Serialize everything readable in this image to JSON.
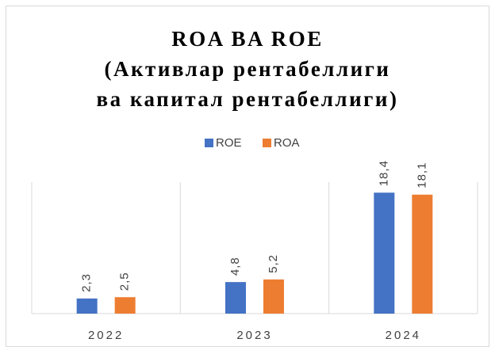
{
  "chart_data": {
    "type": "bar",
    "title": [
      "ROA BA ROE",
      "(Активлар рентабеллиги",
      "ва капитал рентабеллиги)"
    ],
    "categories": [
      "2022",
      "2023",
      "2024"
    ],
    "series": [
      {
        "name": "ROE",
        "color": "#4472c4",
        "values": [
          2.3,
          4.8,
          18.4
        ],
        "value_labels": [
          "2,3",
          "4,8",
          "18,4"
        ]
      },
      {
        "name": "ROA",
        "color": "#ed7d31",
        "values": [
          2.5,
          5.2,
          18.1
        ],
        "value_labels": [
          "2,5",
          "5,2",
          "18,1"
        ]
      }
    ],
    "ylim": [
      0,
      20
    ],
    "legend": "top"
  }
}
